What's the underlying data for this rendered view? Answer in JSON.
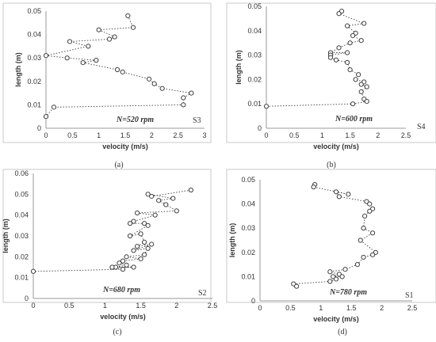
{
  "chart_data": [
    {
      "type": "scatter",
      "xlabel": "velocity (m/s)",
      "ylabel": "length (m)",
      "xlim": [
        0,
        3
      ],
      "ylim": [
        0,
        0.05
      ],
      "xticks": [
        "0",
        "0.5",
        "1",
        "1.5",
        "2",
        "2.5",
        "3"
      ],
      "yticks": [
        "0",
        "0.01",
        "0.02",
        "0.03",
        "0.04",
        "0.05"
      ],
      "annotation": "N=520 rpm",
      "tag": "S3",
      "caption": "(a)",
      "line_style": "dotted",
      "series": [
        {
          "x": [
            1.55,
            1.65,
            1.0,
            1.3,
            1.2,
            0.45,
            0.8,
            0.0,
            0.4,
            0.95,
            0.7,
            1.35,
            1.45,
            1.95,
            2.05,
            2.2,
            2.75,
            2.6,
            2.6,
            0.15,
            0.0
          ],
          "y": [
            0.048,
            0.043,
            0.042,
            0.039,
            0.038,
            0.037,
            0.035,
            0.031,
            0.03,
            0.029,
            0.028,
            0.025,
            0.024,
            0.021,
            0.019,
            0.017,
            0.015,
            0.013,
            0.01,
            0.009,
            0.005
          ]
        }
      ]
    },
    {
      "type": "scatter",
      "xlabel": "velocity (m/s)",
      "ylabel": "length (m)",
      "xlim": [
        0,
        2.5
      ],
      "ylim": [
        0,
        0.05
      ],
      "xticks": [
        "0",
        "0.5",
        "1",
        "1.5",
        "2",
        "2.5"
      ],
      "yticks": [
        "0",
        "0.01",
        "0.02",
        "0.03",
        "0.04",
        "0.05"
      ],
      "annotation": "N=600 rpm",
      "tag": "S4",
      "caption": "(b)",
      "line_style": "dotted",
      "series": [
        {
          "x": [
            1.35,
            1.3,
            1.75,
            1.45,
            1.6,
            1.55,
            1.7,
            1.5,
            1.3,
            1.15,
            1.45,
            1.15,
            1.15,
            1.25,
            1.45,
            1.5,
            1.65,
            1.6,
            1.75,
            1.7,
            1.8,
            1.7,
            1.75,
            1.8,
            1.55,
            0.0
          ],
          "y": [
            0.048,
            0.047,
            0.043,
            0.042,
            0.039,
            0.038,
            0.036,
            0.035,
            0.033,
            0.031,
            0.031,
            0.03,
            0.029,
            0.028,
            0.027,
            0.024,
            0.022,
            0.02,
            0.019,
            0.018,
            0.017,
            0.015,
            0.012,
            0.011,
            0.01,
            0.009
          ]
        }
      ]
    },
    {
      "type": "scatter",
      "xlabel": "velocity (m/s)",
      "ylabel": "length (m)",
      "xlim": [
        0,
        2.5
      ],
      "ylim": [
        0,
        0.06
      ],
      "xticks": [
        "0",
        "0.5",
        "1",
        "1.5",
        "2",
        "2.5"
      ],
      "yticks": [
        "0",
        "0.01",
        "0.02",
        "0.03",
        "0.04",
        "0.05",
        "0.06"
      ],
      "annotation": "N=680 rpm",
      "tag": "S2",
      "caption": "(c)",
      "line_style": "dotted",
      "series": [
        {
          "x": [
            2.2,
            1.65,
            1.6,
            1.95,
            1.75,
            1.85,
            2.0,
            1.45,
            1.7,
            1.4,
            1.35,
            1.55,
            1.6,
            1.35,
            1.5,
            1.55,
            1.45,
            1.65,
            1.4,
            1.6,
            1.55,
            1.3,
            1.5,
            1.25,
            1.2,
            1.3,
            1.15,
            1.4,
            1.1,
            1.25,
            0.0
          ],
          "y": [
            0.052,
            0.049,
            0.05,
            0.048,
            0.047,
            0.045,
            0.042,
            0.041,
            0.04,
            0.037,
            0.036,
            0.036,
            0.035,
            0.03,
            0.031,
            0.027,
            0.025,
            0.026,
            0.023,
            0.024,
            0.021,
            0.02,
            0.019,
            0.018,
            0.017,
            0.016,
            0.015,
            0.015,
            0.015,
            0.014,
            0.013
          ]
        }
      ]
    },
    {
      "type": "scatter",
      "xlabel": "velocity (m/s)",
      "ylabel": "length (m)",
      "xlim": [
        0,
        2.5
      ],
      "ylim": [
        0,
        0.05
      ],
      "xticks": [
        "0",
        "0.5",
        "1",
        "1.5",
        "2",
        "2.5"
      ],
      "yticks": [
        "0",
        "0.01",
        "0.02",
        "0.03",
        "0.04",
        "0.05"
      ],
      "annotation": "N=780 rpm",
      "tag": "S1",
      "caption": "(d)",
      "line_style": "dotted",
      "series": [
        {
          "x": [
            0.9,
            0.88,
            1.45,
            1.25,
            1.3,
            1.75,
            1.8,
            1.85,
            1.8,
            1.72,
            1.7,
            1.85,
            1.65,
            1.9,
            1.85,
            1.7,
            1.6,
            1.4,
            1.15,
            1.3,
            1.2,
            1.35,
            1.25,
            1.15,
            0.55,
            0.6
          ],
          "y": [
            0.048,
            0.047,
            0.044,
            0.045,
            0.043,
            0.041,
            0.04,
            0.038,
            0.037,
            0.035,
            0.03,
            0.028,
            0.025,
            0.02,
            0.019,
            0.018,
            0.015,
            0.013,
            0.012,
            0.011,
            0.01,
            0.01,
            0.009,
            0.008,
            0.007,
            0.006
          ]
        }
      ]
    }
  ]
}
